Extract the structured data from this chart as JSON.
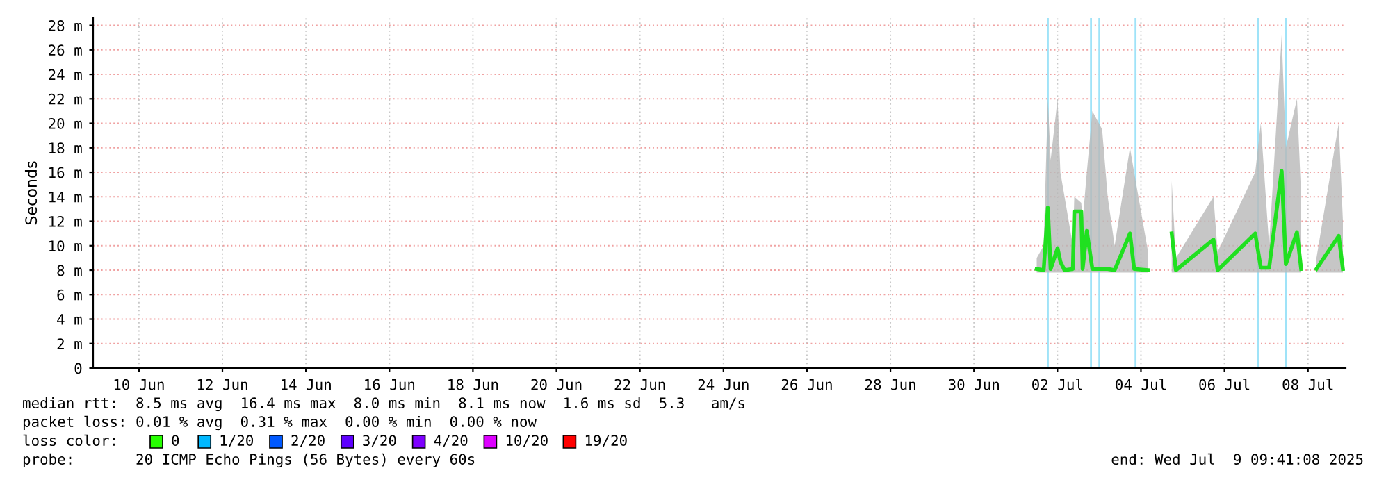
{
  "chart_data": {
    "type": "line",
    "ylabel": "Seconds",
    "xlim": [
      "2025-06-09T09:41",
      "2025-07-09T09:41"
    ],
    "xticks": [
      {
        "value": "2025-06-10T12:00",
        "label": "10 Jun"
      },
      {
        "value": "2025-06-12T12:00",
        "label": "12 Jun"
      },
      {
        "value": "2025-06-14T12:00",
        "label": "14 Jun"
      },
      {
        "value": "2025-06-16T12:00",
        "label": "16 Jun"
      },
      {
        "value": "2025-06-18T12:00",
        "label": "18 Jun"
      },
      {
        "value": "2025-06-20T12:00",
        "label": "20 Jun"
      },
      {
        "value": "2025-06-22T12:00",
        "label": "22 Jun"
      },
      {
        "value": "2025-06-24T12:00",
        "label": "24 Jun"
      },
      {
        "value": "2025-06-26T12:00",
        "label": "26 Jun"
      },
      {
        "value": "2025-06-28T12:00",
        "label": "28 Jun"
      },
      {
        "value": "2025-06-30T12:00",
        "label": "30 Jun"
      },
      {
        "value": "2025-07-02T12:00",
        "label": "02 Jul"
      },
      {
        "value": "2025-07-04T12:00",
        "label": "04 Jul"
      },
      {
        "value": "2025-07-06T12:00",
        "label": "06 Jul"
      },
      {
        "value": "2025-07-08T12:00",
        "label": "08 Jul"
      }
    ],
    "ylim": [
      0,
      28.6
    ],
    "yticks": [
      0,
      {
        "value": 2,
        "label": "2 m"
      },
      {
        "value": 4,
        "label": "4 m"
      },
      {
        "value": 6,
        "label": "6 m"
      },
      {
        "value": 8,
        "label": "8 m"
      },
      {
        "value": 10,
        "label": "10 m"
      },
      {
        "value": 12,
        "label": "12 m"
      },
      {
        "value": 14,
        "label": "14 m"
      },
      {
        "value": 16,
        "label": "16 m"
      },
      {
        "value": 18,
        "label": "18 m"
      },
      {
        "value": 20,
        "label": "20 m"
      },
      {
        "value": 22,
        "label": "22 m"
      },
      {
        "value": 24,
        "label": "24 m"
      },
      {
        "value": 26,
        "label": "26 m"
      },
      {
        "value": 28,
        "label": "28 m"
      }
    ],
    "grid": true,
    "marker": "none",
    "line_style": "solid",
    "x": [
      "2025-07-02T00:05",
      "2025-07-02T04:05",
      "2025-07-02T06:29",
      "2025-07-02T08:05",
      "2025-07-02T12:05",
      "2025-07-02T13:41",
      "2025-07-02T16:05",
      "2025-07-02T20:53",
      "2025-07-02T21:41",
      "2025-07-03T01:41",
      "2025-07-03T02:29",
      "2025-07-03T04:53",
      "2025-07-03T08:05",
      "2025-07-03T13:41",
      "2025-07-03T16:53",
      "2025-07-03T20:53",
      "2025-07-04T05:41",
      "2025-07-04T08:05",
      "2025-07-04T16:05",
      "2025-07-04T21:41",
      "2025-07-05T05:41",
      "2025-07-05T08:05",
      "2025-07-06T05:41",
      "2025-07-06T08:05",
      "2025-07-07T05:41",
      "2025-07-07T08:53",
      "2025-07-07T13:41",
      "2025-07-07T20:53",
      "2025-07-07T23:17",
      "2025-07-08T05:41",
      "2025-07-08T08:05",
      "2025-07-08T09:41",
      "2025-07-08T16:53",
      "2025-07-09T05:41",
      "2025-07-09T08:05"
    ],
    "series": [
      {
        "color": "#20e020",
        "values": [
          8.1,
          8.0,
          13.1,
          8.1,
          9.8,
          8.7,
          8.0,
          8.1,
          12.8,
          12.8,
          8.1,
          11.2,
          8.1,
          8.1,
          8.1,
          8.0,
          11.0,
          8.1,
          8.0,
          null,
          11.0,
          8.0,
          10.5,
          8.0,
          11.0,
          8.2,
          8.2,
          16.1,
          8.5,
          11.1,
          8.1,
          null,
          8.1,
          10.8,
          8.1
        ],
        "lower": [
          7.8,
          7.8,
          7.8,
          7.8,
          7.8,
          7.8,
          7.8,
          7.8,
          7.8,
          7.8,
          7.8,
          7.8,
          7.8,
          7.8,
          7.8,
          7.8,
          7.8,
          7.8,
          7.8,
          null,
          7.8,
          7.8,
          7.8,
          7.8,
          7.8,
          7.8,
          7.8,
          7.8,
          7.8,
          7.8,
          7.8,
          null,
          7.8,
          7.8,
          7.8
        ],
        "upper": [
          9.0,
          10.0,
          22.0,
          17.0,
          22.0,
          16.0,
          14.0,
          10.0,
          14.0,
          13.5,
          12.0,
          16.0,
          21.0,
          19.5,
          14.0,
          10.0,
          18.0,
          16.0,
          9.5,
          null,
          15.3,
          9.0,
          14.0,
          9.5,
          16.0,
          20.0,
          10.0,
          27.2,
          18.0,
          22.0,
          14.0,
          null,
          9.0,
          20.0,
          12.0
        ]
      }
    ],
    "ref_lines": [
      {
        "axis": "x",
        "value": "2025-07-02T06:29",
        "color": "#9fe3f8"
      },
      {
        "axis": "x",
        "value": "2025-07-03T07:17",
        "color": "#9fe3f8"
      },
      {
        "axis": "x",
        "value": "2025-07-03T12:05",
        "color": "#9fe3f8"
      },
      {
        "axis": "x",
        "value": "2025-07-04T08:53",
        "color": "#9fe3f8"
      },
      {
        "axis": "x",
        "value": "2025-07-07T07:17",
        "color": "#9fe3f8"
      },
      {
        "axis": "x",
        "value": "2025-07-07T23:17",
        "color": "#9fe3f8"
      }
    ],
    "annotations": [
      "median rtt:  8.5 ms avg  16.4 ms max  8.0 ms min  8.1 ms now  1.6 ms sd  5.3   am/s",
      "packet loss: 0.01 % avg  0.31 % max  0.00 % min  0.00 % now",
      "loss color:",
      "0",
      "1/20",
      "2/20",
      "3/20",
      "4/20",
      "10/20",
      "19/20",
      "probe:       20 ICMP Echo Pings (56 Bytes) every 60s",
      "end: Wed Jul  9 09:41:08 2025"
    ]
  }
}
